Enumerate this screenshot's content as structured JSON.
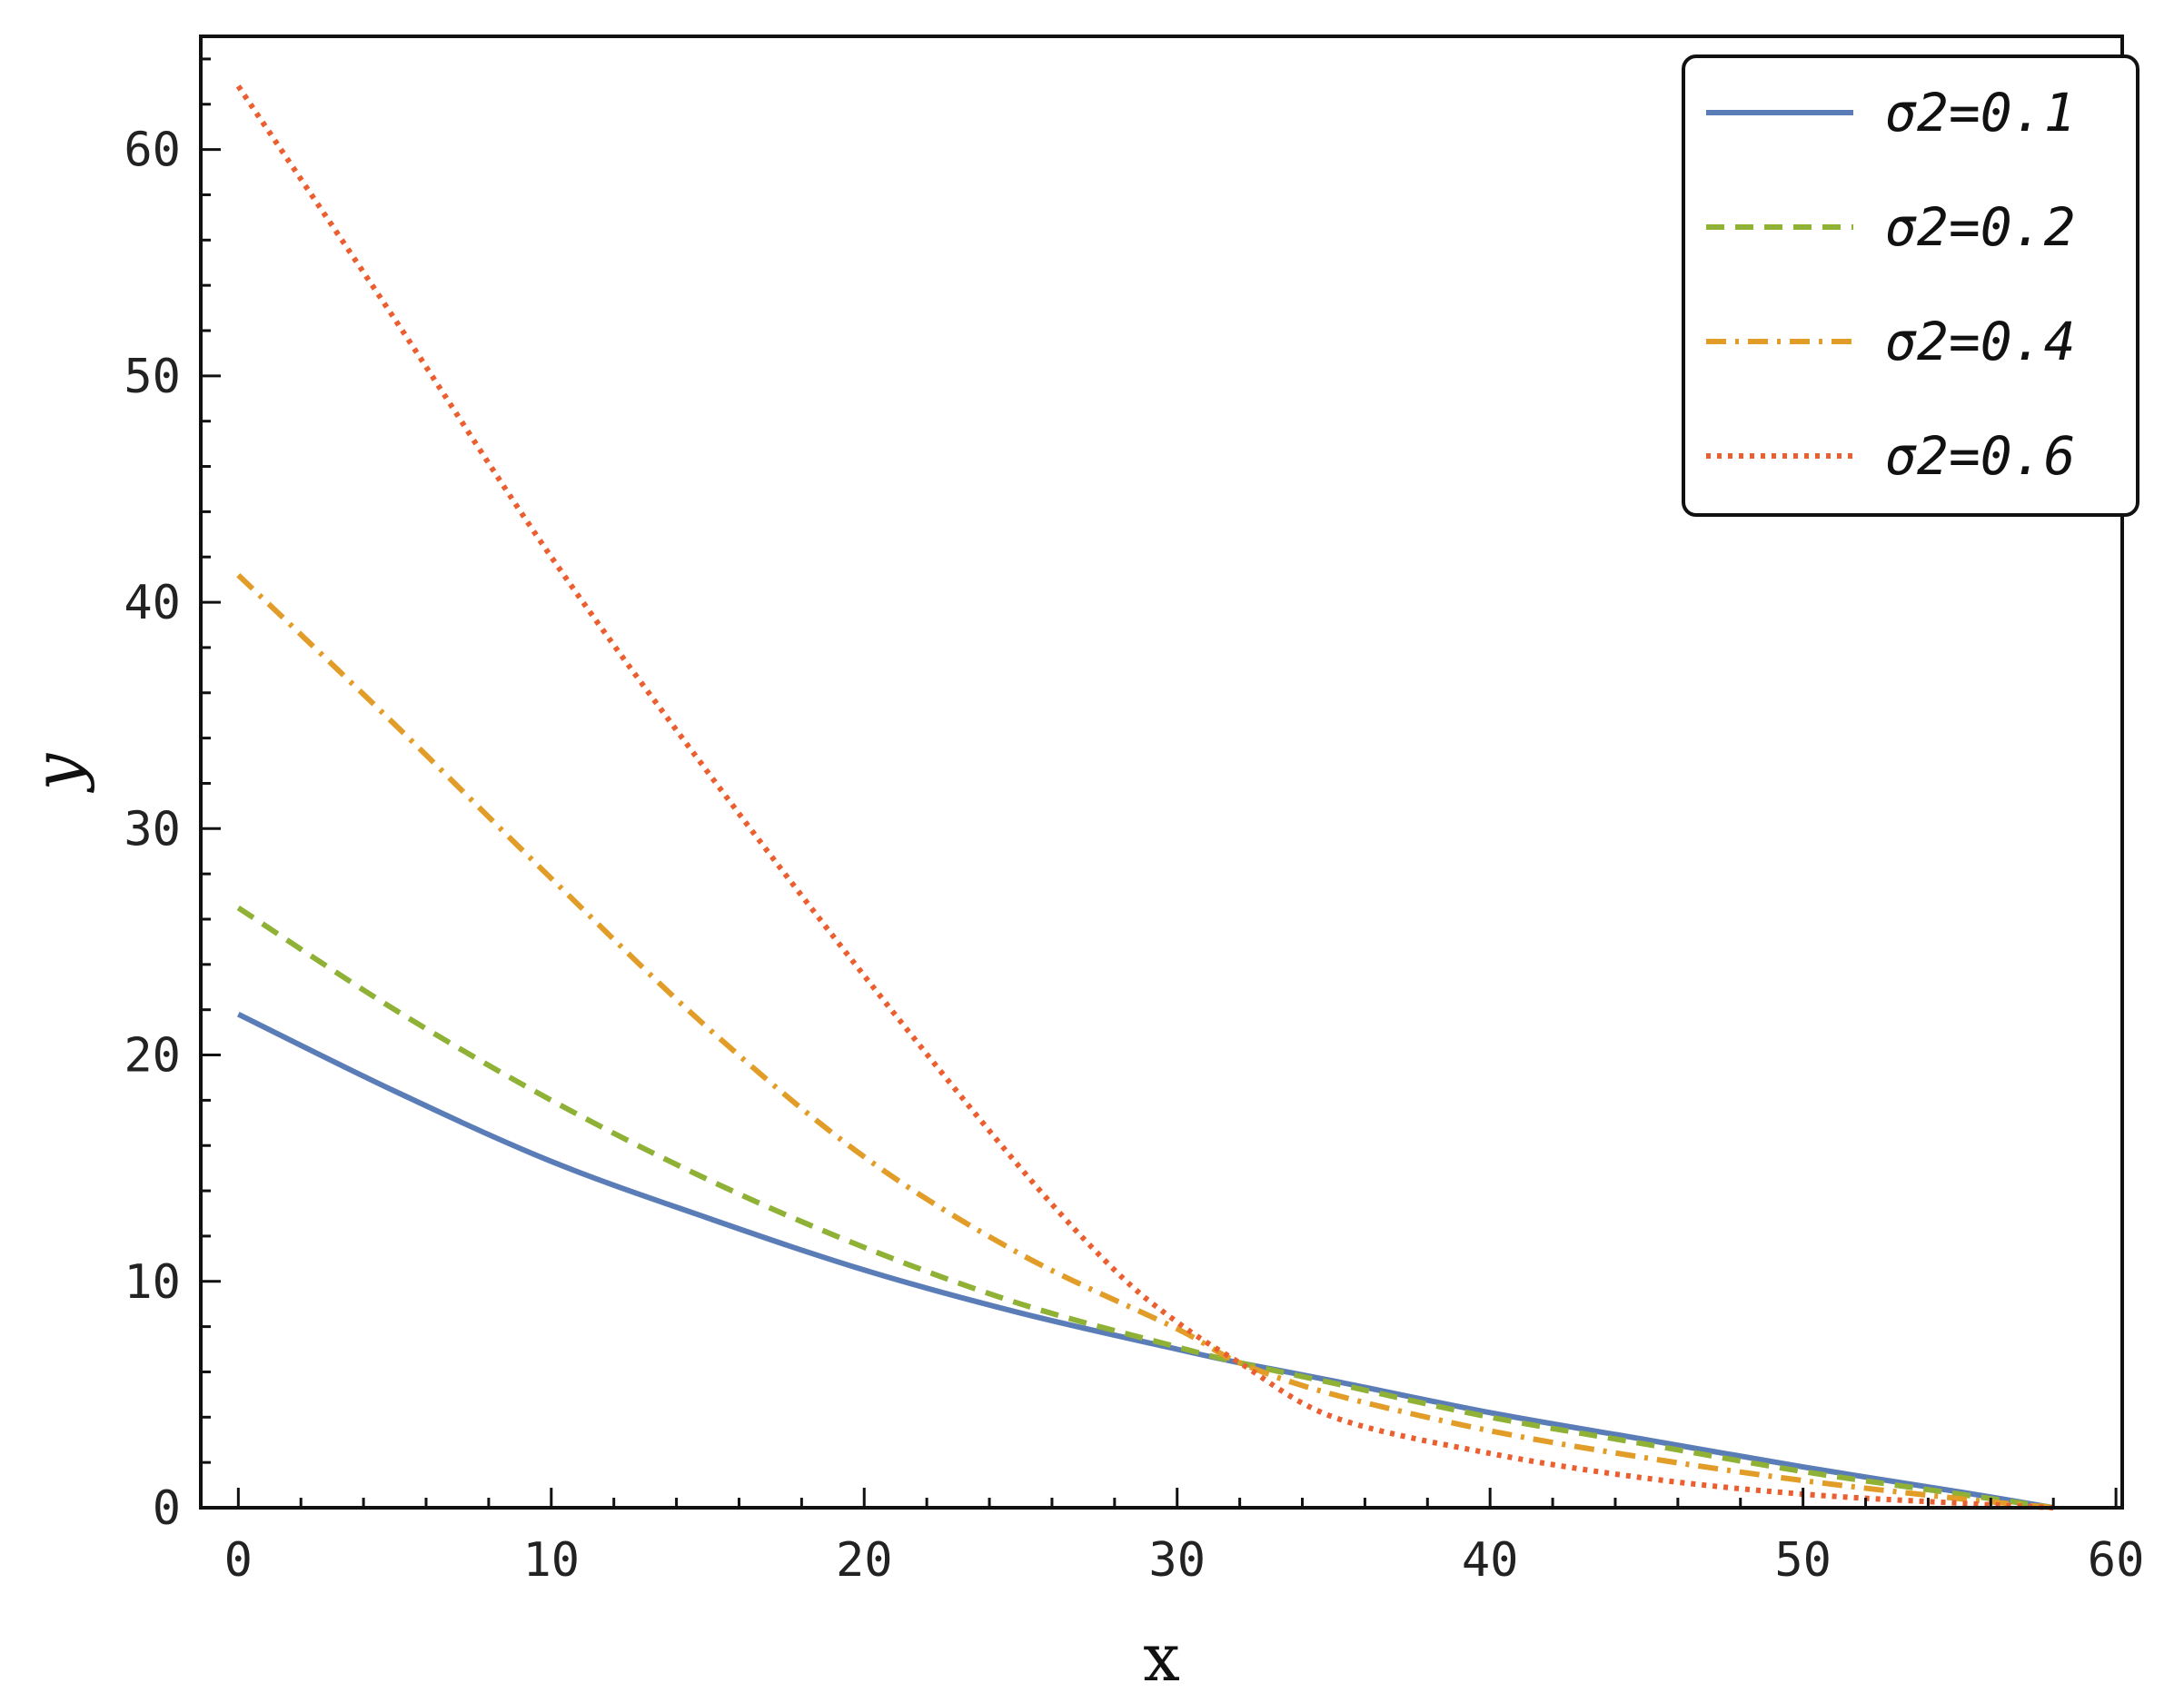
{
  "chart_data": {
    "type": "line",
    "xlabel": "x",
    "ylabel": "y",
    "xlim": [
      -1.2,
      60.2
    ],
    "ylim": [
      0,
      65
    ],
    "xticks": [
      "0",
      "10",
      "20",
      "30",
      "40",
      "50",
      "60"
    ],
    "yticks": [
      "0",
      "10",
      "20",
      "30",
      "40",
      "50",
      "60"
    ],
    "grid": false,
    "legend": "top-right",
    "series": [
      {
        "name": "σ2=0.1",
        "color": "#5b7db7",
        "dash": "solid",
        "x": [
          0,
          5,
          10,
          15,
          20,
          25,
          30,
          32,
          35,
          40,
          45,
          50,
          55,
          58
        ],
        "y": [
          21.8,
          18.4,
          15.3,
          12.8,
          10.5,
          8.6,
          7.0,
          6.4,
          5.6,
          4.2,
          3.0,
          1.8,
          0.7,
          0
        ]
      },
      {
        "name": "σ2=0.2",
        "color": "#8fb135",
        "dash": "dashed",
        "x": [
          0,
          5,
          10,
          15,
          20,
          25,
          30,
          32,
          35,
          40,
          45,
          50,
          55,
          58
        ],
        "y": [
          26.5,
          22.0,
          18.0,
          14.5,
          11.5,
          9.0,
          7.1,
          6.4,
          5.5,
          4.0,
          2.8,
          1.6,
          0.6,
          0
        ]
      },
      {
        "name": "σ2=0.4",
        "color": "#e29d29",
        "dash": "dash-dot",
        "x": [
          0,
          5,
          10,
          15,
          20,
          25,
          30,
          32,
          35,
          40,
          45,
          50,
          55,
          58
        ],
        "y": [
          41.2,
          34.6,
          27.8,
          21.2,
          15.5,
          11.2,
          7.9,
          6.4,
          5.0,
          3.4,
          2.2,
          1.2,
          0.4,
          0
        ]
      },
      {
        "name": "σ2=0.6",
        "color": "#eb5e2f",
        "dash": "dotted",
        "x": [
          0,
          5,
          10,
          15,
          20,
          25,
          28,
          30,
          32,
          35,
          40,
          45,
          50,
          55,
          58
        ],
        "y": [
          62.8,
          52.5,
          42.0,
          32.5,
          23.5,
          15.0,
          10.5,
          8.2,
          6.4,
          4.0,
          2.4,
          1.3,
          0.6,
          0.2,
          0
        ]
      }
    ]
  }
}
